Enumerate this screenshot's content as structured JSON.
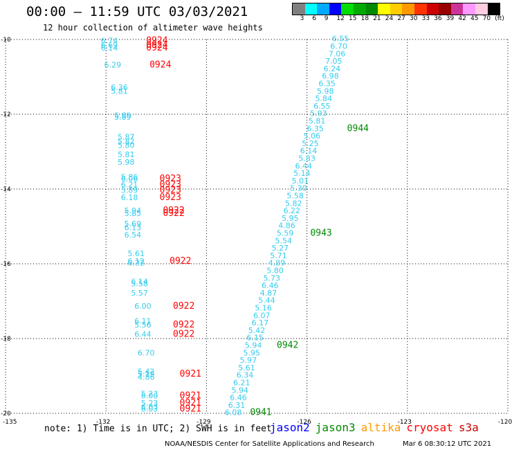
{
  "title": "00:00 – 11:59 UTC 03/03/2021",
  "subtitle": "12 hour collection of altimeter wave heights",
  "color_scale": {
    "colors": [
      "#808080",
      "#00ffff",
      "#00aaff",
      "#0000ff",
      "#00dd00",
      "#00aa00",
      "#008800",
      "#ffff00",
      "#ffcc00",
      "#ff9900",
      "#ff3300",
      "#cc0000",
      "#990000",
      "#cc3399",
      "#ff99ff",
      "#ffcce0",
      "#000000"
    ],
    "labels": [
      "3",
      "6",
      "9",
      "12",
      "15",
      "18",
      "21",
      "24",
      "27",
      "30",
      "33",
      "36",
      "39",
      "42",
      "45",
      "70",
      "(ft)"
    ]
  },
  "axes": {
    "lon_labels": [
      "-135",
      "-132",
      "-129",
      "-126",
      "-123",
      "-120"
    ],
    "lat_labels": [
      "-10",
      "-12",
      "-14",
      "-16",
      "-18",
      "-20"
    ]
  },
  "colors": {
    "jason2": "#0000ff",
    "jason3": "#008800",
    "altika": "#ff9900",
    "cryosat": "#ff0000",
    "s3a": "#cc0000",
    "track_values": "#33ccee",
    "grid": "#000000"
  },
  "chart_data": {
    "type": "scatter",
    "xlim": [
      -135,
      -120
    ],
    "ylim": [
      -20,
      -10
    ],
    "xlabel": "",
    "ylabel": "",
    "grid": true,
    "series": [
      {
        "name": "cryosat",
        "points": [
          {
            "lon": -131.9,
            "lat": -10.1,
            "swh": "6.74"
          },
          {
            "lon": -131.9,
            "lat": -10.22,
            "swh": "6.69"
          },
          {
            "lon": -131.9,
            "lat": -10.3,
            "swh": "6.14"
          },
          {
            "lon": -131.8,
            "lat": -10.75,
            "swh": "6.29"
          },
          {
            "lon": -131.6,
            "lat": -11.35,
            "swh": "6.36"
          },
          {
            "lon": -131.6,
            "lat": -11.45,
            "swh": "5.81"
          },
          {
            "lon": -131.5,
            "lat": -12.1,
            "swh": "5.89"
          },
          {
            "lon": -131.5,
            "lat": -12.15,
            "swh": "5.89"
          },
          {
            "lon": -131.4,
            "lat": -12.68,
            "swh": "5.87"
          },
          {
            "lon": -131.4,
            "lat": -12.8,
            "swh": "5.82"
          },
          {
            "lon": -131.4,
            "lat": -12.9,
            "swh": "5.80"
          },
          {
            "lon": -131.4,
            "lat": -13.15,
            "swh": "5.81"
          },
          {
            "lon": -131.4,
            "lat": -13.35,
            "swh": "5.98"
          },
          {
            "lon": -131.3,
            "lat": -13.75,
            "swh": "5.86"
          },
          {
            "lon": -131.3,
            "lat": -13.8,
            "swh": "6.06"
          },
          {
            "lon": -131.3,
            "lat": -13.95,
            "swh": "6.21"
          },
          {
            "lon": -131.3,
            "lat": -14.1,
            "swh": "5.89"
          },
          {
            "lon": -131.3,
            "lat": -14.3,
            "swh": "6.18"
          },
          {
            "lon": -131.2,
            "lat": -14.65,
            "swh": "5.94"
          },
          {
            "lon": -131.2,
            "lat": -14.72,
            "swh": "5.85"
          },
          {
            "lon": -131.2,
            "lat": -15.0,
            "swh": "5.69"
          },
          {
            "lon": -131.2,
            "lat": -15.1,
            "swh": "6.13"
          },
          {
            "lon": -131.2,
            "lat": -15.3,
            "swh": "6.54"
          },
          {
            "lon": -131.1,
            "lat": -15.8,
            "swh": "5.61"
          },
          {
            "lon": -131.1,
            "lat": -16.0,
            "swh": "6.12"
          },
          {
            "lon": -131.1,
            "lat": -16.05,
            "swh": "6.32"
          },
          {
            "lon": -131.0,
            "lat": -16.55,
            "swh": "6.14"
          },
          {
            "lon": -131.0,
            "lat": -16.6,
            "swh": "5.58"
          },
          {
            "lon": -131.0,
            "lat": -16.85,
            "swh": "5.57"
          },
          {
            "lon": -130.9,
            "lat": -17.2,
            "swh": "6.00"
          },
          {
            "lon": -130.9,
            "lat": -17.6,
            "swh": "6.11"
          },
          {
            "lon": -130.9,
            "lat": -17.7,
            "swh": "5.56"
          },
          {
            "lon": -130.9,
            "lat": -17.95,
            "swh": "6.44"
          },
          {
            "lon": -130.8,
            "lat": -18.45,
            "swh": "6.70"
          },
          {
            "lon": -130.8,
            "lat": -18.95,
            "swh": "5.42"
          },
          {
            "lon": -130.8,
            "lat": -19.02,
            "swh": "5.19"
          },
          {
            "lon": -130.8,
            "lat": -19.1,
            "swh": "4.86"
          },
          {
            "lon": -130.7,
            "lat": -19.55,
            "swh": "5.23"
          },
          {
            "lon": -130.7,
            "lat": -19.6,
            "swh": "6.00"
          },
          {
            "lon": -130.7,
            "lat": -19.8,
            "swh": "5.23"
          },
          {
            "lon": -130.7,
            "lat": -19.9,
            "swh": "6.03"
          },
          {
            "lon": -130.7,
            "lat": -19.95,
            "swh": "6.03"
          }
        ],
        "time_labels": [
          {
            "lon": -130.8,
            "lat": -10.1,
            "text": "0924"
          },
          {
            "lon": -130.8,
            "lat": -10.22,
            "text": "0924"
          },
          {
            "lon": -130.8,
            "lat": -10.3,
            "text": "0924"
          },
          {
            "lon": -130.7,
            "lat": -10.75,
            "text": "0924"
          },
          {
            "lon": -130.4,
            "lat": -13.8,
            "text": "0923"
          },
          {
            "lon": -130.4,
            "lat": -13.95,
            "text": "0923"
          },
          {
            "lon": -130.4,
            "lat": -14.1,
            "text": "0923"
          },
          {
            "lon": -130.4,
            "lat": -14.3,
            "text": "0923"
          },
          {
            "lon": -130.3,
            "lat": -14.65,
            "text": "0922"
          },
          {
            "lon": -130.3,
            "lat": -14.72,
            "text": "0922"
          },
          {
            "lon": -130.1,
            "lat": -16.0,
            "text": "0922"
          },
          {
            "lon": -130.0,
            "lat": -17.2,
            "text": "0922"
          },
          {
            "lon": -130.0,
            "lat": -17.7,
            "text": "0922"
          },
          {
            "lon": -130.0,
            "lat": -17.95,
            "text": "0922"
          },
          {
            "lon": -129.8,
            "lat": -19.02,
            "text": "0921"
          },
          {
            "lon": -129.8,
            "lat": -19.6,
            "text": "0921"
          },
          {
            "lon": -129.8,
            "lat": -19.8,
            "text": "0921"
          },
          {
            "lon": -129.8,
            "lat": -19.95,
            "text": "0921"
          }
        ]
      },
      {
        "name": "jason3",
        "points": [
          {
            "lon": -125.0,
            "lat": -10.05,
            "swh": "6.55"
          },
          {
            "lon": -125.05,
            "lat": -10.25,
            "swh": "6.70"
          },
          {
            "lon": -125.1,
            "lat": -10.45,
            "swh": "7.06"
          },
          {
            "lon": -125.2,
            "lat": -10.65,
            "swh": "7.05"
          },
          {
            "lon": -125.25,
            "lat": -10.85,
            "swh": "6.24"
          },
          {
            "lon": -125.3,
            "lat": -11.05,
            "swh": "6.98"
          },
          {
            "lon": -125.4,
            "lat": -11.25,
            "swh": "6.35"
          },
          {
            "lon": -125.45,
            "lat": -11.45,
            "swh": "5.98"
          },
          {
            "lon": -125.5,
            "lat": -11.65,
            "swh": "5.84"
          },
          {
            "lon": -125.55,
            "lat": -11.85,
            "swh": "6.55"
          },
          {
            "lon": -125.65,
            "lat": -12.05,
            "swh": "5.93"
          },
          {
            "lon": -125.7,
            "lat": -12.25,
            "swh": "5.81"
          },
          {
            "lon": -125.75,
            "lat": -12.45,
            "swh": "6.35"
          },
          {
            "lon": -125.85,
            "lat": -12.65,
            "swh": "5.06"
          },
          {
            "lon": -125.9,
            "lat": -12.85,
            "swh": "5.25"
          },
          {
            "lon": -125.95,
            "lat": -13.05,
            "swh": "6.14"
          },
          {
            "lon": -126.0,
            "lat": -13.25,
            "swh": "5.83"
          },
          {
            "lon": -126.1,
            "lat": -13.45,
            "swh": "6.44"
          },
          {
            "lon": -126.15,
            "lat": -13.65,
            "swh": "5.14"
          },
          {
            "lon": -126.2,
            "lat": -13.85,
            "swh": "5.01"
          },
          {
            "lon": -126.25,
            "lat": -14.05,
            "swh": "5.30"
          },
          {
            "lon": -126.35,
            "lat": -14.25,
            "swh": "5.58"
          },
          {
            "lon": -126.4,
            "lat": -14.45,
            "swh": "5.82"
          },
          {
            "lon": -126.45,
            "lat": -14.65,
            "swh": "6.22"
          },
          {
            "lon": -126.5,
            "lat": -14.85,
            "swh": "5.95"
          },
          {
            "lon": -126.6,
            "lat": -15.05,
            "swh": "4.86"
          },
          {
            "lon": -126.65,
            "lat": -15.25,
            "swh": "5.59"
          },
          {
            "lon": -126.7,
            "lat": -15.45,
            "swh": "5.54"
          },
          {
            "lon": -126.8,
            "lat": -15.65,
            "swh": "5.27"
          },
          {
            "lon": -126.85,
            "lat": -15.85,
            "swh": "5.71"
          },
          {
            "lon": -126.9,
            "lat": -16.05,
            "swh": "4.89"
          },
          {
            "lon": -126.95,
            "lat": -16.25,
            "swh": "5.80"
          },
          {
            "lon": -127.05,
            "lat": -16.45,
            "swh": "5.73"
          },
          {
            "lon": -127.1,
            "lat": -16.65,
            "swh": "6.46"
          },
          {
            "lon": -127.15,
            "lat": -16.85,
            "swh": "4.87"
          },
          {
            "lon": -127.2,
            "lat": -17.05,
            "swh": "5.44"
          },
          {
            "lon": -127.3,
            "lat": -17.25,
            "swh": "5.16"
          },
          {
            "lon": -127.35,
            "lat": -17.45,
            "swh": "6.07"
          },
          {
            "lon": -127.4,
            "lat": -17.65,
            "swh": "6.17"
          },
          {
            "lon": -127.5,
            "lat": -17.85,
            "swh": "5.42"
          },
          {
            "lon": -127.55,
            "lat": -18.05,
            "swh": "6.15"
          },
          {
            "lon": -127.6,
            "lat": -18.25,
            "swh": "5.94"
          },
          {
            "lon": -127.65,
            "lat": -18.45,
            "swh": "5.95"
          },
          {
            "lon": -127.75,
            "lat": -18.65,
            "swh": "5.97"
          },
          {
            "lon": -127.8,
            "lat": -18.85,
            "swh": "5.61"
          },
          {
            "lon": -127.85,
            "lat": -19.05,
            "swh": "6.34"
          },
          {
            "lon": -127.95,
            "lat": -19.25,
            "swh": "6.21"
          },
          {
            "lon": -128.0,
            "lat": -19.45,
            "swh": "5.94"
          },
          {
            "lon": -128.05,
            "lat": -19.65,
            "swh": "6.46"
          },
          {
            "lon": -128.1,
            "lat": -19.85,
            "swh": "6.31"
          },
          {
            "lon": -128.2,
            "lat": -20.05,
            "swh": "6.08"
          }
        ],
        "time_labels": [
          {
            "lon": -124.8,
            "lat": -12.45,
            "text": "0944"
          },
          {
            "lon": -125.9,
            "lat": -15.25,
            "text": "0943"
          },
          {
            "lon": -126.9,
            "lat": -18.25,
            "text": "0942"
          },
          {
            "lon": -127.7,
            "lat": -20.05,
            "text": "0941"
          }
        ]
      }
    ]
  },
  "footer": {
    "note": "note: 1) Time is in UTC; 2) SWH is in feet",
    "satellites": [
      "jason2",
      "jason3",
      "altika",
      "cryosat",
      "s3a"
    ],
    "credit": "NOAA/NESDIS Center for Satellite Applications and Research",
    "timestamp": "Mar  6 08:30:12 UTC 2021"
  }
}
